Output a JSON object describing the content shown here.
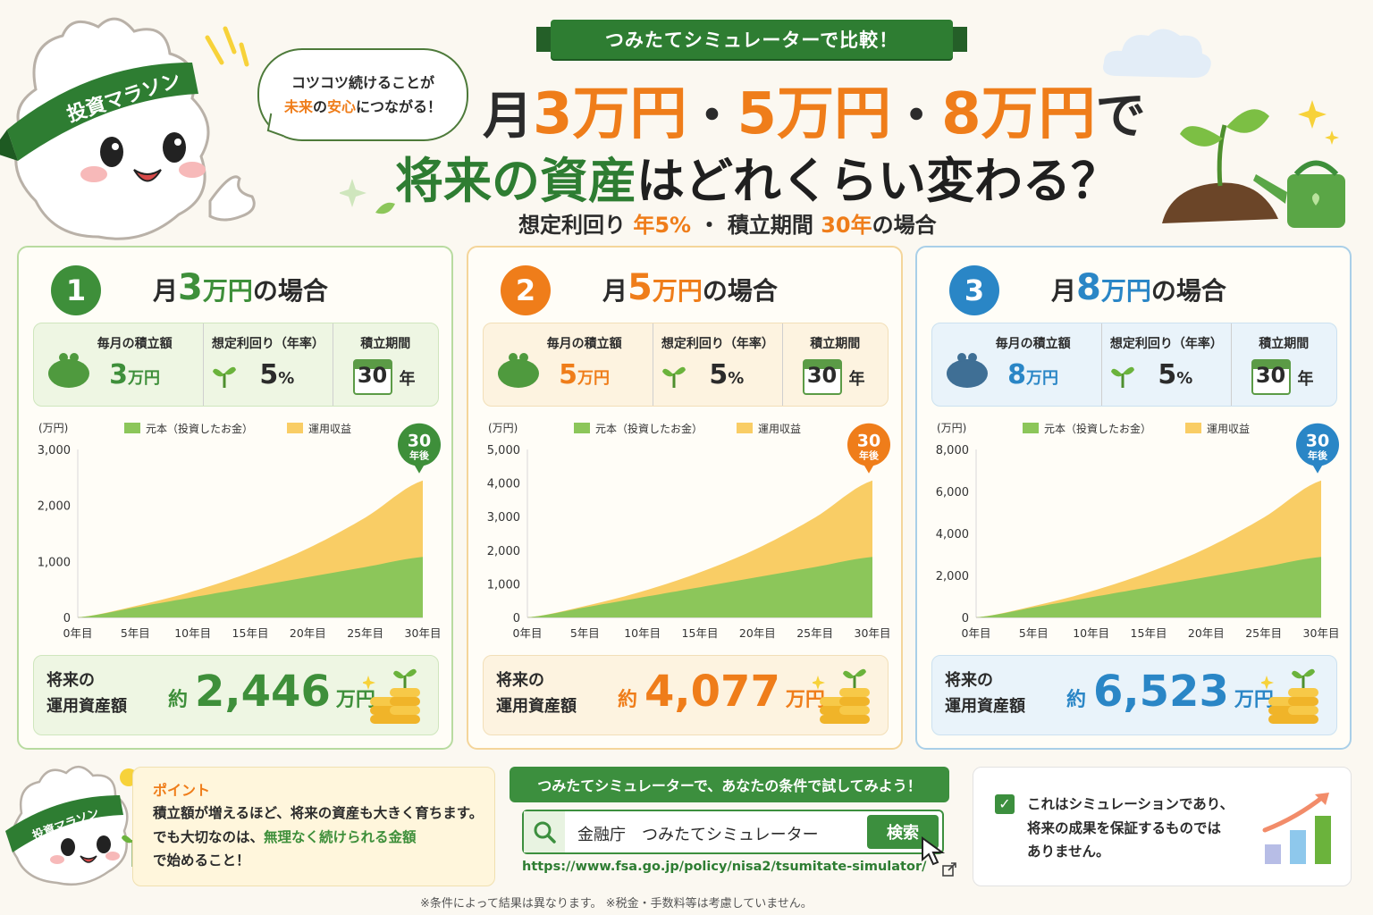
{
  "header": {
    "banner": "つみたてシミュレーターで比較！",
    "bubble_line1": "コツコツ続けることが",
    "bubble_future": "未来",
    "bubble_no": "の",
    "bubble_anshin": "安心",
    "bubble_rest": "につながる！",
    "title_month": "月",
    "title_a1": "3万円",
    "title_dot": "・",
    "title_a2": "5万円",
    "title_a3": "8万円",
    "title_de": "で",
    "title2_green": "将来の資産",
    "title2_rest": "はどれくらい変わる？",
    "sub_label1": "想定利回り",
    "sub_rate": "年5%",
    "sub_mid": "・ 積立期間",
    "sub_years": "30年",
    "sub_end": "の場合",
    "mascot_band": "投資マラソン"
  },
  "cards": [
    {
      "num": "1",
      "title_pre": "月",
      "title_amt": "3",
      "title_unit": "万円",
      "title_post": "の場合",
      "lbl_monthly": "毎月の積立額",
      "monthly_val": "3",
      "monthly_unit": "万円",
      "lbl_rate": "想定利回り（年率）",
      "rate_val": "5",
      "rate_unit": "%",
      "lbl_period": "積立期間",
      "period_val": "30",
      "period_unit": "年",
      "total_label1": "将来の",
      "total_label2": "運用資産額",
      "approx": "約",
      "total_amt": "2,446",
      "total_unit": "万円",
      "color": "#3e8f3a"
    },
    {
      "num": "2",
      "title_pre": "月",
      "title_amt": "5",
      "title_unit": "万円",
      "title_post": "の場合",
      "lbl_monthly": "毎月の積立額",
      "monthly_val": "5",
      "monthly_unit": "万円",
      "lbl_rate": "想定利回り（年率）",
      "rate_val": "5",
      "rate_unit": "%",
      "lbl_period": "積立期間",
      "period_val": "30",
      "period_unit": "年",
      "total_label1": "将来の",
      "total_label2": "運用資産額",
      "approx": "約",
      "total_amt": "4,077",
      "total_unit": "万円",
      "color": "#ef7d1a"
    },
    {
      "num": "3",
      "title_pre": "月",
      "title_amt": "8",
      "title_unit": "万円",
      "title_post": "の場合",
      "lbl_monthly": "毎月の積立額",
      "monthly_val": "8",
      "monthly_unit": "万円",
      "lbl_rate": "想定利回り（年率）",
      "rate_val": "5",
      "rate_unit": "%",
      "lbl_period": "積立期間",
      "period_val": "30",
      "period_unit": "年",
      "total_label1": "将来の",
      "total_label2": "運用資産額",
      "approx": "約",
      "total_amt": "6,523",
      "total_unit": "万円",
      "color": "#2a86c6"
    }
  ],
  "chart_data": [
    {
      "type": "area",
      "ylabel": "(万円)",
      "legend": [
        "元本（投資したお金）",
        "運用収益"
      ],
      "legend_position": "top",
      "x": [
        "0年目",
        "5年目",
        "10年目",
        "15年目",
        "20年目",
        "25年目",
        "30年目"
      ],
      "ylim": [
        0,
        3000
      ],
      "yticks": [
        "0",
        "1,000",
        "2,000",
        "3,000"
      ],
      "series": [
        {
          "name": "元本（投資したお金）",
          "values": [
            0,
            180,
            360,
            540,
            720,
            900,
            1080
          ]
        },
        {
          "name": "運用収益",
          "values": [
            0,
            24,
            106,
            266,
            513,
            884,
            1366
          ]
        }
      ],
      "badge_num": "30",
      "badge_text": "年後"
    },
    {
      "type": "area",
      "ylabel": "(万円)",
      "legend": [
        "元本（投資したお金）",
        "運用収益"
      ],
      "legend_position": "top",
      "x": [
        "0年目",
        "5年目",
        "10年目",
        "15年目",
        "20年目",
        "25年目",
        "30年目"
      ],
      "ylim": [
        0,
        5000
      ],
      "yticks": [
        "0",
        "1,000",
        "2,000",
        "3,000",
        "4,000",
        "5,000"
      ],
      "series": [
        {
          "name": "元本（投資したお金）",
          "values": [
            0,
            300,
            600,
            900,
            1200,
            1500,
            1800
          ]
        },
        {
          "name": "運用収益",
          "values": [
            0,
            40,
            177,
            443,
            855,
            1473,
            2277
          ]
        }
      ],
      "badge_num": "30",
      "badge_text": "年後"
    },
    {
      "type": "area",
      "ylabel": "(万円)",
      "legend": [
        "元本（投資したお金）",
        "運用収益"
      ],
      "legend_position": "top",
      "x": [
        "0年目",
        "5年目",
        "10年目",
        "15年目",
        "20年目",
        "25年目",
        "30年目"
      ],
      "ylim": [
        0,
        8000
      ],
      "yticks": [
        "0",
        "2,000",
        "4,000",
        "6,000",
        "8,000"
      ],
      "series": [
        {
          "name": "元本（投資したお金）",
          "values": [
            0,
            480,
            960,
            1440,
            1920,
            2400,
            2880
          ]
        },
        {
          "name": "運用収益",
          "values": [
            0,
            64,
            283,
            709,
            1368,
            2357,
            3643
          ]
        }
      ],
      "badge_num": "30",
      "badge_text": "年後"
    }
  ],
  "point": {
    "mascot_band": "投資マラソン",
    "heading": "ポイント",
    "line1": "積立額が増えるほど、将来の資産も大きく育ちます。",
    "line2_pre": "でも大切なのは、",
    "line2_green": "無理なく続けられる金額",
    "line3": "で始めること！"
  },
  "simulator": {
    "heading": "つみたてシミュレーターで、あなたの条件で試してみよう！",
    "query": "金融庁　つみたてシミュレーター",
    "button": "検索",
    "url": "https://www.fsa.go.jp/policy/nisa2/tsumitate-simulator/"
  },
  "disclaimer": {
    "line1": "これはシミュレーションであり、",
    "line2": "将来の成果を保証するものでは",
    "line3": "ありません。"
  },
  "footnote": "※条件によって結果は異なります。 ※税金・手数料等は考慮していません。",
  "colors": {
    "principal": "#8cc65a",
    "profit": "#f9cd65",
    "green": "#3e8f3a",
    "orange": "#ef7d1a",
    "blue": "#2a86c6"
  }
}
